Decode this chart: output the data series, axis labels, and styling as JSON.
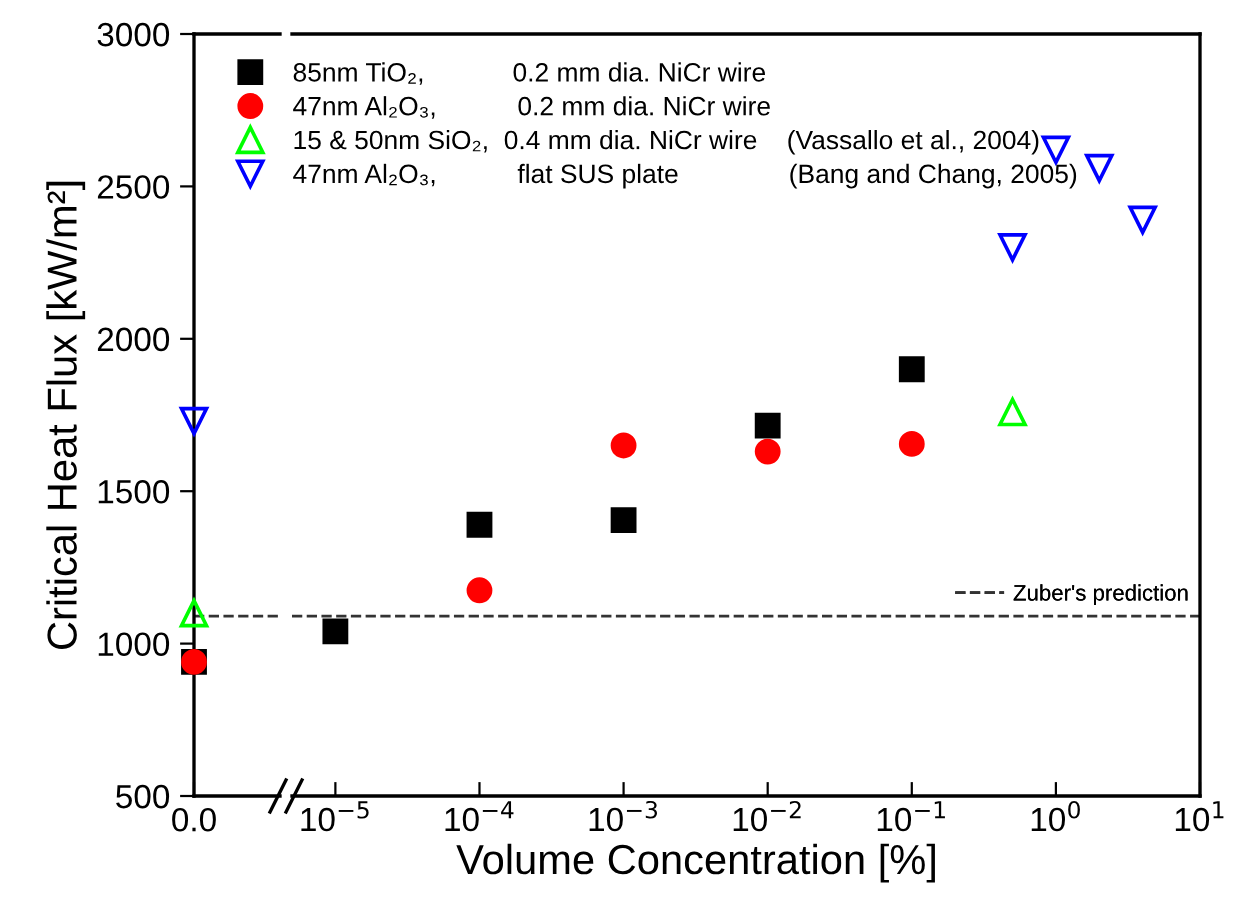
{
  "chart_data": [
    {
      "type": "scatter",
      "ylabel": "Critical Heat Flux [kW/m²]",
      "categories": [
        "0.0"
      ],
      "ylim": [
        500,
        3000
      ],
      "yticks": [
        500,
        1000,
        1500,
        2000,
        2500,
        3000
      ],
      "grid": false,
      "series": [
        {
          "color": "#000000",
          "marker": "square",
          "x": [
            "0.0"
          ],
          "values": [
            940
          ]
        },
        {
          "color": "#ff0000",
          "marker": "circle",
          "x": [
            "0.0"
          ],
          "values": [
            940
          ]
        },
        {
          "color": "#00ff00",
          "marker": "triangle",
          "x": [
            "0.0"
          ],
          "values": [
            1100
          ]
        },
        {
          "color": "#0000ff",
          "marker": "triangle_down",
          "x": [
            "0.0"
          ],
          "values": [
            1730
          ]
        }
      ],
      "ref_lines": [
        {
          "axis": "y",
          "value": 1090,
          "color": "#333333",
          "line_style": "dashed"
        }
      ]
    },
    {
      "type": "scatter",
      "xlabel": "Volume Concentration [%]",
      "log": "x",
      "xlim": [
        5e-06,
        10
      ],
      "xticks": [
        {
          "value": 1e-05,
          "label": "10$^{−5}$"
        },
        {
          "value": 0.0001,
          "label": "10$^{−4}$"
        },
        {
          "value": 0.001,
          "label": "10$^{−3}$"
        },
        {
          "value": 0.01,
          "label": "10$^{−2}$"
        },
        {
          "value": 0.1,
          "label": "10$^{−1}$"
        },
        {
          "value": 1,
          "label": "10$^{0}$"
        },
        {
          "value": 10,
          "label": "10$^{1}$"
        }
      ],
      "ylim": [
        500,
        3000
      ],
      "tick_labels": "x",
      "grid": false,
      "legend": "top left",
      "series": [
        {
          "name": "85nm TiO₂,            0.2 mm dia. NiCr wire",
          "color": "#000000",
          "marker": "square",
          "x": [
            1e-05,
            0.0001,
            0.001,
            0.01,
            0.1
          ],
          "values": [
            1040,
            1390,
            1405,
            1715,
            1900
          ]
        },
        {
          "name": "47nm Al₂O₃,           0.2 mm dia. NiCr wire",
          "color": "#ff0000",
          "marker": "circle",
          "x": [
            0.0001,
            0.001,
            0.01,
            0.1
          ],
          "values": [
            1175,
            1650,
            1630,
            1655
          ]
        },
        {
          "name": "15 & 50nm SiO₂,  0.4 mm dia. NiCr wire    (Vassallo et al., 2004)",
          "color": "#00ff00",
          "marker": "triangle",
          "x": [
            0.5
          ],
          "values": [
            1760
          ]
        },
        {
          "name": "47nm Al₂O₃,           flat SUS plate               (Bang and Chang, 2005)",
          "color": "#0000ff",
          "marker": "triangle_down",
          "x": [
            0.5,
            1,
            2,
            4
          ],
          "values": [
            2300,
            2620,
            2560,
            2390
          ]
        }
      ],
      "ref_lines": [
        {
          "axis": "y",
          "value": 1090,
          "label": "Zuber's prediction",
          "color": "#333333",
          "line_style": "dashed"
        }
      ]
    }
  ]
}
